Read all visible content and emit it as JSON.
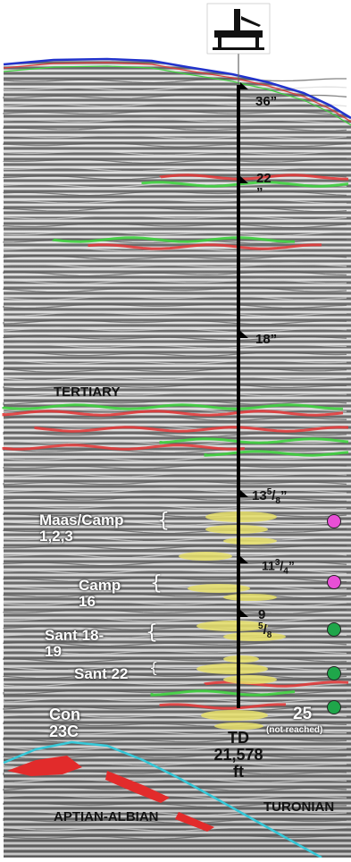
{
  "casings": [
    {
      "label": "36”"
    },
    {
      "label": "22",
      "label2": "”"
    },
    {
      "label": "18”"
    },
    {
      "label": "13",
      "sup": "5",
      "sub": "8",
      "tail": "”"
    },
    {
      "label": "11",
      "sup": "3",
      "sub": "4",
      "tail": "”"
    },
    {
      "label": "9",
      "sup": "5",
      "sub": "8"
    }
  ],
  "targets": [
    {
      "line1": "Maas/Camp",
      "line2": "1,2,3",
      "dot_color": "#e84fd6"
    },
    {
      "line1": "Camp",
      "line2": "16",
      "dot_color": "#e84fd6"
    },
    {
      "line1": "Sant 18-",
      "line2": "19",
      "dot_color": "#1fa64a"
    },
    {
      "line1": "Sant 22",
      "line2": "",
      "dot_color": "#1fa64a"
    },
    {
      "line1": "",
      "line2": "",
      "dot_color": "#1fa64a"
    }
  ],
  "formations": {
    "tertiary": "TERTIARY",
    "con_line1": "Con",
    "con_line2": "23C",
    "aptian": "APTIAN-ALBIAN",
    "turonian": "TURONIAN"
  },
  "td": {
    "line1": "TD",
    "line2": "21,578",
    "line3": "ft"
  },
  "target25": {
    "label": "25",
    "note": "(not reached)"
  },
  "colors": {
    "wellbore": "#000000",
    "seabed": "#2233cc",
    "base_horizon": "#35c8d8",
    "sand": "#e8e06a"
  }
}
